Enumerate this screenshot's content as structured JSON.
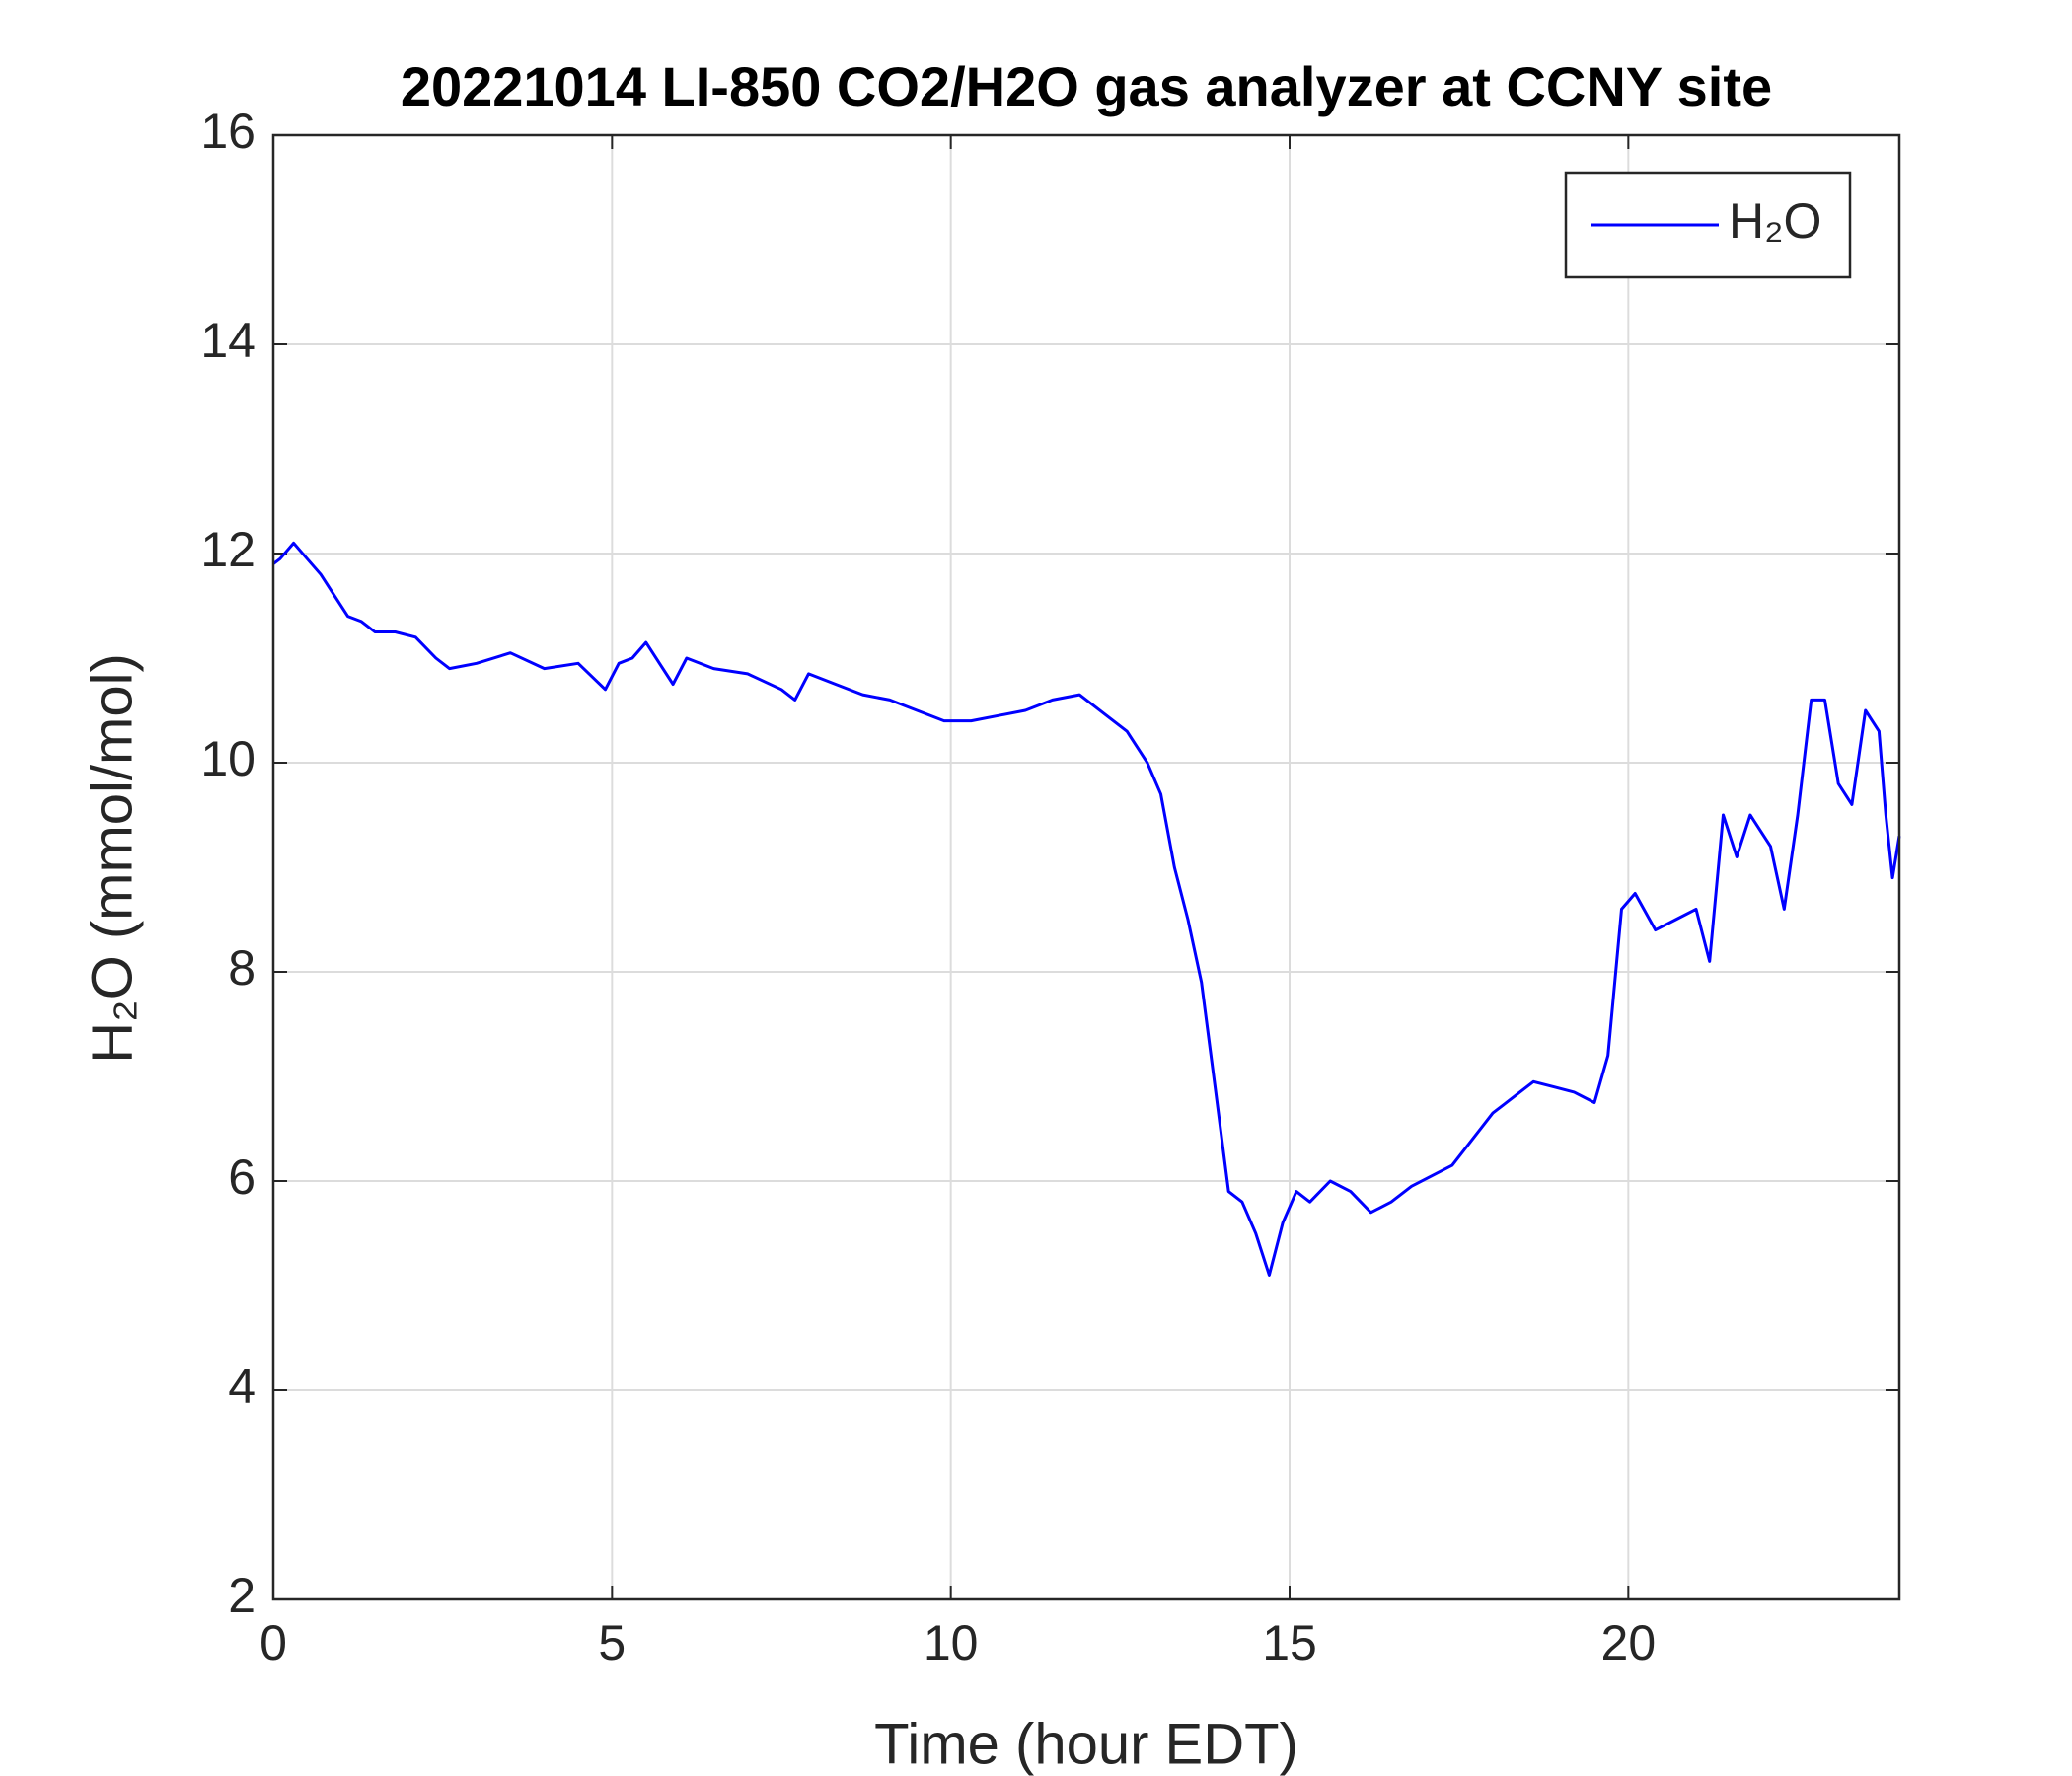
{
  "chart_data": {
    "type": "line",
    "title": "20221014 LI-850 CO2/H2O gas analyzer at CCNY site",
    "x_label": "Time (hour EDT)",
    "y_label": "H₂O (mmol/mol)",
    "x": [
      0,
      0.1,
      0.3,
      0.5,
      0.7,
      0.9,
      1.1,
      1.3,
      1.5,
      1.8,
      2.1,
      2.4,
      2.6,
      3.0,
      3.5,
      4.0,
      4.5,
      4.9,
      5.1,
      5.3,
      5.5,
      5.7,
      5.9,
      6.1,
      6.5,
      7.0,
      7.5,
      7.7,
      7.9,
      8.3,
      8.7,
      9.1,
      9.5,
      9.9,
      10.3,
      10.7,
      11.1,
      11.5,
      11.9,
      12.3,
      12.6,
      12.9,
      13.1,
      13.3,
      13.5,
      13.7,
      13.9,
      14.1,
      14.3,
      14.5,
      14.7,
      14.9,
      15.1,
      15.3,
      15.6,
      15.9,
      16.2,
      16.5,
      16.8,
      17.1,
      17.4,
      17.7,
      18.0,
      18.3,
      18.6,
      18.9,
      19.2,
      19.5,
      19.7,
      19.9,
      20.1,
      20.4,
      20.7,
      21.0,
      21.2,
      21.4,
      21.6,
      21.8,
      22.1,
      22.3,
      22.5,
      22.7,
      22.9,
      23.1,
      23.3,
      23.5,
      23.7,
      23.8,
      23.9,
      24.0
    ],
    "series": [
      {
        "name": "H₂O",
        "color": "#0000ff",
        "values": [
          11.9,
          11.95,
          12.1,
          11.95,
          11.8,
          11.6,
          11.4,
          11.35,
          11.25,
          11.25,
          11.2,
          11.0,
          10.9,
          10.95,
          11.05,
          10.9,
          10.95,
          10.7,
          10.95,
          11.0,
          11.15,
          10.95,
          10.75,
          11.0,
          10.9,
          10.85,
          10.7,
          10.6,
          10.85,
          10.75,
          10.65,
          10.6,
          10.5,
          10.4,
          10.4,
          10.45,
          10.5,
          10.6,
          10.65,
          10.45,
          10.3,
          10.0,
          9.7,
          9.0,
          8.5,
          7.9,
          6.9,
          5.9,
          5.8,
          5.5,
          5.1,
          5.6,
          5.9,
          5.8,
          6.0,
          5.9,
          5.7,
          5.8,
          5.95,
          6.05,
          6.15,
          6.4,
          6.65,
          6.8,
          6.95,
          6.9,
          6.85,
          6.75,
          7.2,
          8.6,
          8.75,
          8.4,
          8.5,
          8.6,
          8.1,
          9.5,
          9.1,
          9.5,
          9.2,
          8.6,
          9.5,
          10.6,
          10.6,
          9.8,
          9.6,
          10.5,
          10.3,
          9.5,
          8.9,
          9.3
        ]
      }
    ],
    "xlim": [
      0,
      24
    ],
    "xticks": [
      0,
      5,
      10,
      15,
      20
    ],
    "ylim": [
      2,
      16
    ],
    "yticks": [
      2,
      4,
      6,
      8,
      10,
      12,
      14,
      16
    ],
    "grid": true,
    "legend_position": "upper right"
  }
}
